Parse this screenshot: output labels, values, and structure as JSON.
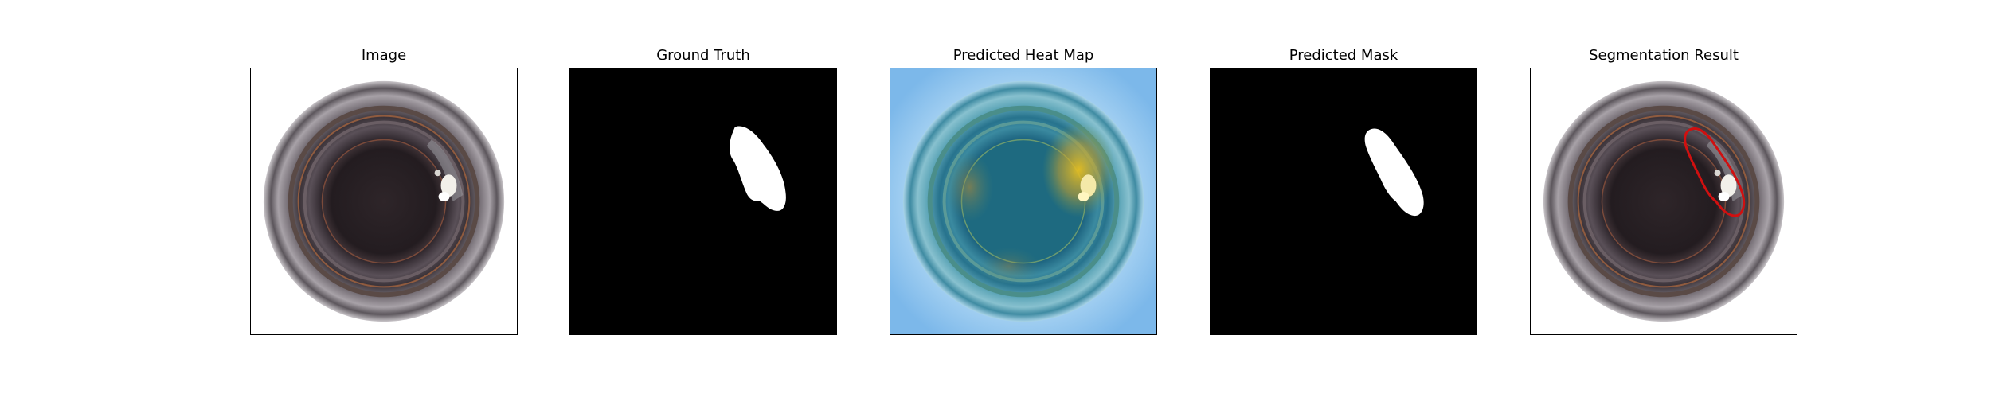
{
  "panels": [
    {
      "title": "Image",
      "content": "bottle-photo"
    },
    {
      "title": "Ground Truth",
      "content": "binary-mask"
    },
    {
      "title": "Predicted Heat Map",
      "content": "heatmap-overlay"
    },
    {
      "title": "Predicted Mask",
      "content": "binary-mask"
    },
    {
      "title": "Segmentation Result",
      "content": "photo-with-contour"
    }
  ],
  "colors": {
    "figure_background": "#ffffff",
    "mask_background": "#000000",
    "mask_foreground": "#ffffff",
    "heatmap_background": "#8ec3ee",
    "contour": "#d01010"
  }
}
